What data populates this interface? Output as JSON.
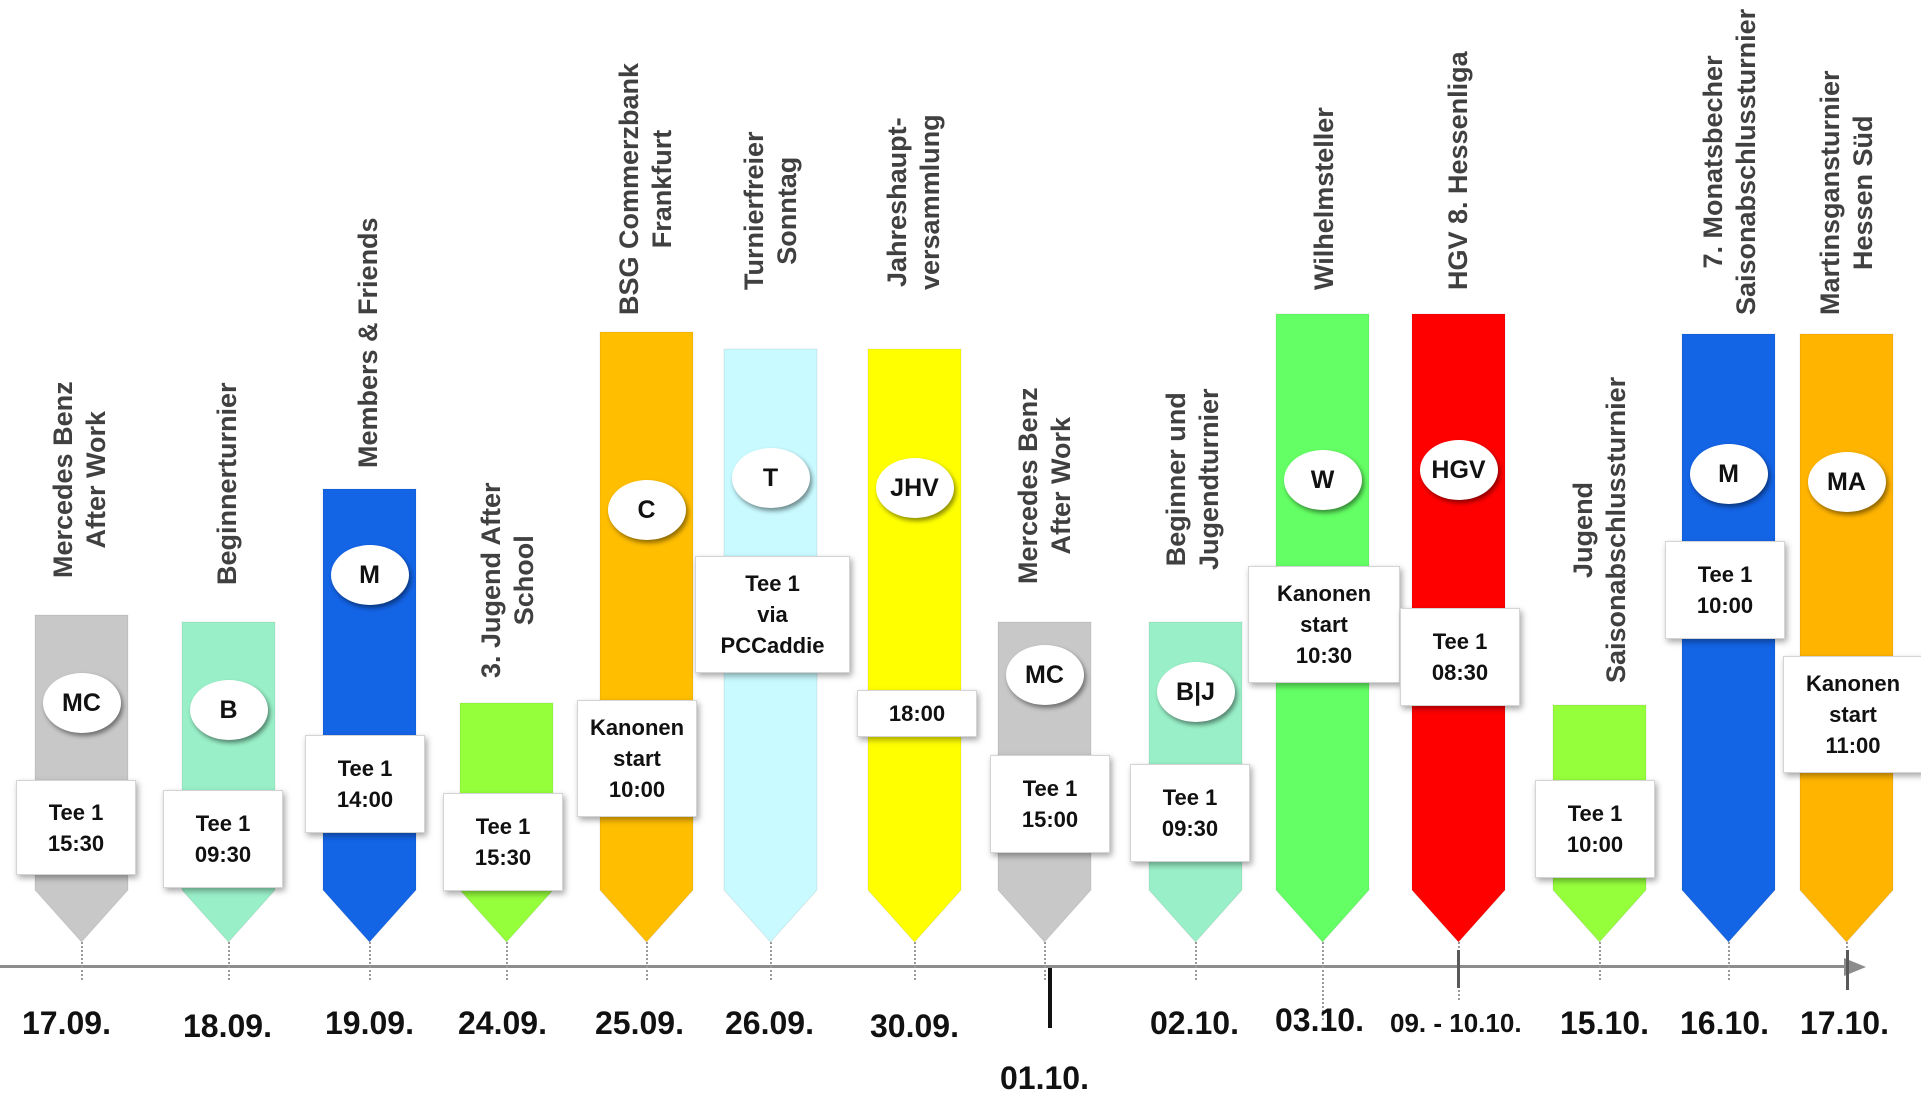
{
  "events": [
    {
      "key": "mc1",
      "title": [
        "Mercedes Benz",
        "After Work"
      ],
      "badge": "MC",
      "label": [
        "Tee 1",
        "15:30"
      ],
      "date": "17.09.",
      "color": "#c8c8c8"
    },
    {
      "key": "b1",
      "title": [
        "Beginnerturnier"
      ],
      "badge": "B",
      "label": [
        "Tee 1",
        "09:30"
      ],
      "date": "18.09.",
      "color": "#99f0c8"
    },
    {
      "key": "m1",
      "title": [
        "Members & Friends"
      ],
      "badge": "M",
      "label": [
        "Tee 1",
        "14:00"
      ],
      "date": "19.09.",
      "color": "#1464e6"
    },
    {
      "key": "j1",
      "title": [
        "3. Jugend After",
        "School"
      ],
      "badge": "",
      "label": [
        "Tee 1",
        "15:30"
      ],
      "date": "24.09.",
      "color": "#96ff3c"
    },
    {
      "key": "c",
      "title": [
        "BSG Commerzbank",
        "Frankfurt"
      ],
      "badge": "C",
      "label": [
        "Kanonen",
        "start",
        "10:00"
      ],
      "date": "25.09.",
      "color": "#ffbe00"
    },
    {
      "key": "t",
      "title": [
        "Turnierfreier",
        "Sonntag"
      ],
      "badge": "T",
      "label": [
        "Tee 1",
        "via",
        "PCCaddie"
      ],
      "date": "26.09.",
      "color": "#c8faff"
    },
    {
      "key": "jhv",
      "title": [
        "Jahreshaupt-",
        "versammlung"
      ],
      "badge": "JHV",
      "label": [
        "18:00"
      ],
      "date": "30.09.",
      "color": "#ffff00"
    },
    {
      "key": "mc2",
      "title": [
        "Mercedes Benz",
        "After Work"
      ],
      "badge": "MC",
      "label": [
        "Tee 1",
        "15:00"
      ],
      "date": "01.10.",
      "color": "#c8c8c8"
    },
    {
      "key": "bj",
      "title": [
        "Beginner und",
        "Jugendturnier"
      ],
      "badge": "B|J",
      "label": [
        "Tee 1",
        "09:30"
      ],
      "date": "02.10.",
      "color": "#99f0c8"
    },
    {
      "key": "w",
      "title": [
        "Wilhelmsteller"
      ],
      "badge": "W",
      "label": [
        "Kanonen",
        "start",
        "10:30"
      ],
      "date": "03.10.",
      "color": "#64ff64"
    },
    {
      "key": "hgv",
      "title": [
        "HGV  8. Hessenliga"
      ],
      "badge": "HGV",
      "label": [
        "Tee 1",
        "08:30"
      ],
      "date": "09. - 10.10.",
      "color": "#ff0000"
    },
    {
      "key": "j2",
      "title": [
        "Jugend",
        "Saisonabschlussturnier"
      ],
      "badge": "",
      "label": [
        "Tee 1",
        "10:00"
      ],
      "date": "15.10.",
      "color": "#96ff3c"
    },
    {
      "key": "m2",
      "title": [
        "7. Monatsbecher",
        "Saisonabschlussturnier"
      ],
      "badge": "M",
      "label": [
        "Tee 1",
        "10:00"
      ],
      "date": "16.10.",
      "color": "#1464e6"
    },
    {
      "key": "ma",
      "title": [
        "Martinsgansturnier",
        "Hessen Süd"
      ],
      "badge": "MA",
      "label": [
        "Kanonen",
        "start",
        "11:00"
      ],
      "date": "17.10.",
      "color": "#ffb400"
    }
  ]
}
